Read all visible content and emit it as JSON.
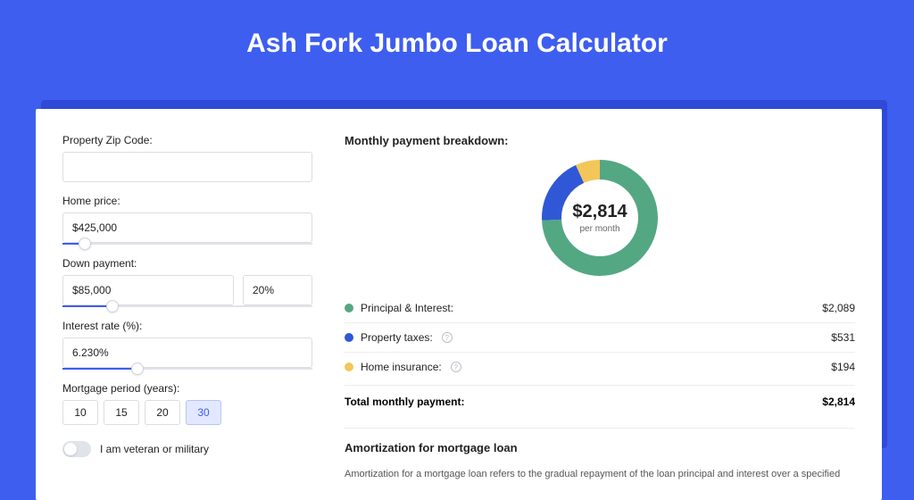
{
  "page_title": "Ash Fork Jumbo Loan Calculator",
  "colors": {
    "page_bg": "#3e5ef0",
    "shadow_bg": "#2f4ad6",
    "card_bg": "#ffffff",
    "border": "#dcdde2",
    "accent": "#3e5ef0"
  },
  "form": {
    "zip_label": "Property Zip Code:",
    "zip_value": "",
    "home_price_label": "Home price:",
    "home_price_value": "$425,000",
    "home_price_slider_pct": 9,
    "down_payment_label": "Down payment:",
    "down_payment_value": "$85,000",
    "down_payment_pct": "20%",
    "down_payment_slider_pct": 20,
    "interest_label": "Interest rate (%):",
    "interest_value": "6.230%",
    "interest_slider_pct": 30,
    "period_label": "Mortgage period (years):",
    "period_options": [
      "10",
      "15",
      "20",
      "30"
    ],
    "period_selected": "30",
    "veteran_label": "I am veteran or military",
    "veteran_on": false
  },
  "breakdown": {
    "heading": "Monthly payment breakdown:",
    "donut": {
      "center_value": "$2,814",
      "center_sub": "per month",
      "size": 130,
      "stroke_width": 22,
      "slices": [
        {
          "key": "principal_interest",
          "value": 2089,
          "color": "#54a783"
        },
        {
          "key": "property_taxes",
          "value": 531,
          "color": "#3058d6"
        },
        {
          "key": "home_insurance",
          "value": 194,
          "color": "#f3c65a"
        }
      ]
    },
    "items": [
      {
        "label": "Principal & Interest:",
        "value": "$2,089",
        "color": "#54a783",
        "info": false
      },
      {
        "label": "Property taxes:",
        "value": "$531",
        "color": "#3058d6",
        "info": true
      },
      {
        "label": "Home insurance:",
        "value": "$194",
        "color": "#f3c65a",
        "info": true
      }
    ],
    "total_label": "Total monthly payment:",
    "total_value": "$2,814"
  },
  "amortization": {
    "heading": "Amortization for mortgage loan",
    "text": "Amortization for a mortgage loan refers to the gradual repayment of the loan principal and interest over a specified"
  }
}
